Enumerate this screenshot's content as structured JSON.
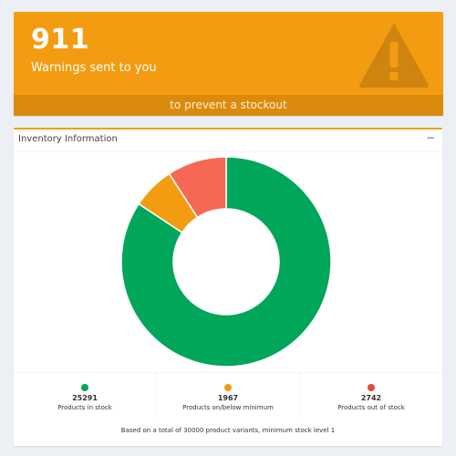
{
  "warning_box": {
    "count": "911",
    "subtitle": "Warnings sent to you",
    "footer_link": "to prevent a stockout",
    "icon": "warning-triangle-icon",
    "color": "#f39c12",
    "footer_color": "#db8b0b"
  },
  "inventory_box": {
    "title": "Inventory Information",
    "collapse_label": "−",
    "footer_note": "Based on a total of 30000 product variants, minimum stock level 1",
    "stats": [
      {
        "value": "25291",
        "label": "Products in stock",
        "color": "#00a65a"
      },
      {
        "value": "1967",
        "label": "Products on/below minimum",
        "color": "#f39c12"
      },
      {
        "value": "2742",
        "label": "Products out of stock",
        "color": "#dd4b39"
      }
    ]
  },
  "chart_data": {
    "type": "pie",
    "variant": "donut",
    "categories": [
      "Products in stock",
      "Products on/below minimum",
      "Products out of stock"
    ],
    "values": [
      25291,
      1967,
      2742
    ],
    "colors": [
      "#00a65a",
      "#f39c12",
      "#f56954"
    ],
    "title": "",
    "legend": "none"
  }
}
